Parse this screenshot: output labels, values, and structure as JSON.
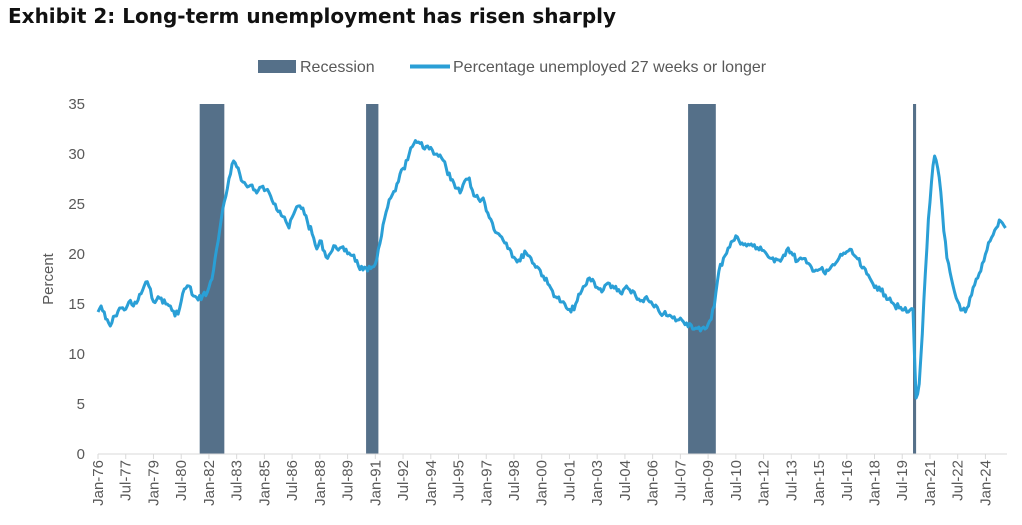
{
  "title": "Exhibit 2: Long-term unemployment has risen sharply",
  "chart_data": {
    "type": "line",
    "ylabel": "Percent",
    "xlabel": "",
    "ylim": [
      0,
      35
    ],
    "y_ticks": [
      0,
      5,
      10,
      15,
      20,
      25,
      30,
      35
    ],
    "grid": false,
    "legend_position": "top-center",
    "colors": {
      "line": "#2a9fd6",
      "recession": "#557089",
      "axis": "#d9d9d9",
      "text": "#595959"
    },
    "x_tick_labels": [
      "Jan-76",
      "Jul-77",
      "Jan-79",
      "Jul-80",
      "Jan-82",
      "Jul-83",
      "Jan-85",
      "Jul-86",
      "Jan-88",
      "Jul-89",
      "Jan-91",
      "Jul-92",
      "Jan-94",
      "Jul-95",
      "Jan-97",
      "Jul-98",
      "Jan-00",
      "Jul-01",
      "Jan-03",
      "Jul-04",
      "Jan-06",
      "Jul-07",
      "Jan-09",
      "Jul-10",
      "Jan-12",
      "Jul-13",
      "Jan-15",
      "Jul-16",
      "Jan-18",
      "Jul-19",
      "Jan-21",
      "Jul-22",
      "Jan-24"
    ],
    "x_range": [
      "1976-01",
      "2025-03"
    ],
    "series": [
      {
        "name": "Percentage unemployed 27 weeks or longer",
        "kind": "line",
        "points": [
          [
            "1976-01",
            14.2
          ],
          [
            "1976-03",
            14.8
          ],
          [
            "1976-06",
            13.5
          ],
          [
            "1976-09",
            12.8
          ],
          [
            "1976-12",
            13.8
          ],
          [
            "1977-03",
            14.6
          ],
          [
            "1977-06",
            14.4
          ],
          [
            "1977-09",
            15.2
          ],
          [
            "1977-12",
            14.8
          ],
          [
            "1978-03",
            15.4
          ],
          [
            "1978-06",
            16.4
          ],
          [
            "1978-08",
            17.2
          ],
          [
            "1978-10",
            16.8
          ],
          [
            "1978-12",
            15.6
          ],
          [
            "1979-03",
            15.4
          ],
          [
            "1979-06",
            15.6
          ],
          [
            "1979-09",
            15.0
          ],
          [
            "1979-12",
            14.8
          ],
          [
            "1980-03",
            13.8
          ],
          [
            "1980-06",
            14.6
          ],
          [
            "1980-09",
            16.5
          ],
          [
            "1980-12",
            16.8
          ],
          [
            "1981-03",
            15.8
          ],
          [
            "1981-06",
            15.4
          ],
          [
            "1981-09",
            15.9
          ],
          [
            "1981-12",
            16.2
          ],
          [
            "1982-03",
            17.5
          ],
          [
            "1982-06",
            20.5
          ],
          [
            "1982-09",
            23.5
          ],
          [
            "1982-12",
            25.8
          ],
          [
            "1983-03",
            28.0
          ],
          [
            "1983-05",
            29.3
          ],
          [
            "1983-08",
            28.6
          ],
          [
            "1983-11",
            27.2
          ],
          [
            "1984-02",
            26.7
          ],
          [
            "1984-05",
            26.9
          ],
          [
            "1984-08",
            26.1
          ],
          [
            "1984-11",
            26.7
          ],
          [
            "1985-02",
            26.4
          ],
          [
            "1985-05",
            25.8
          ],
          [
            "1985-08",
            25.0
          ],
          [
            "1985-11",
            24.3
          ],
          [
            "1986-02",
            23.7
          ],
          [
            "1986-05",
            22.6
          ],
          [
            "1986-08",
            24.0
          ],
          [
            "1986-11",
            24.8
          ],
          [
            "1987-02",
            24.6
          ],
          [
            "1987-05",
            23.2
          ],
          [
            "1987-08",
            22.0
          ],
          [
            "1987-11",
            20.5
          ],
          [
            "1988-02",
            21.3
          ],
          [
            "1988-05",
            19.7
          ],
          [
            "1988-08",
            20.1
          ],
          [
            "1988-11",
            20.8
          ],
          [
            "1989-02",
            20.6
          ],
          [
            "1989-05",
            20.3
          ],
          [
            "1989-08",
            20.1
          ],
          [
            "1989-11",
            19.9
          ],
          [
            "1990-02",
            18.8
          ],
          [
            "1990-05",
            18.4
          ],
          [
            "1990-08",
            18.3
          ],
          [
            "1990-11",
            18.7
          ],
          [
            "1991-02",
            19.5
          ],
          [
            "1991-05",
            21.8
          ],
          [
            "1991-08",
            24.2
          ],
          [
            "1991-11",
            25.6
          ],
          [
            "1992-02",
            26.3
          ],
          [
            "1992-05",
            28.0
          ],
          [
            "1992-08",
            28.5
          ],
          [
            "1992-11",
            30.0
          ],
          [
            "1993-02",
            31.0
          ],
          [
            "1993-05",
            31.2
          ],
          [
            "1993-08",
            30.6
          ],
          [
            "1993-11",
            30.8
          ],
          [
            "1994-02",
            30.4
          ],
          [
            "1994-05",
            30.0
          ],
          [
            "1994-08",
            29.6
          ],
          [
            "1994-11",
            28.6
          ],
          [
            "1995-02",
            27.4
          ],
          [
            "1995-05",
            26.6
          ],
          [
            "1995-08",
            26.1
          ],
          [
            "1995-11",
            27.3
          ],
          [
            "1996-02",
            27.6
          ],
          [
            "1996-05",
            25.8
          ],
          [
            "1996-08",
            25.5
          ],
          [
            "1996-11",
            25.6
          ],
          [
            "1997-02",
            24.1
          ],
          [
            "1997-05",
            23.1
          ],
          [
            "1997-08",
            22.1
          ],
          [
            "1997-11",
            21.7
          ],
          [
            "1998-02",
            21.1
          ],
          [
            "1998-05",
            20.3
          ],
          [
            "1998-08",
            19.5
          ],
          [
            "1998-11",
            19.3
          ],
          [
            "1999-02",
            20.3
          ],
          [
            "1999-05",
            19.8
          ],
          [
            "1999-08",
            19.0
          ],
          [
            "1999-11",
            18.6
          ],
          [
            "2000-02",
            17.8
          ],
          [
            "2000-05",
            17.0
          ],
          [
            "2000-08",
            16.3
          ],
          [
            "2000-11",
            15.6
          ],
          [
            "2001-02",
            15.2
          ],
          [
            "2001-05",
            14.6
          ],
          [
            "2001-08",
            14.2
          ],
          [
            "2001-11",
            15.0
          ],
          [
            "2002-02",
            16.0
          ],
          [
            "2002-05",
            16.8
          ],
          [
            "2002-08",
            17.6
          ],
          [
            "2002-11",
            17.2
          ],
          [
            "2003-02",
            16.5
          ],
          [
            "2003-05",
            16.4
          ],
          [
            "2003-08",
            17.1
          ],
          [
            "2003-11",
            16.8
          ],
          [
            "2004-02",
            16.3
          ],
          [
            "2004-05",
            16.0
          ],
          [
            "2004-08",
            16.8
          ],
          [
            "2004-11",
            16.1
          ],
          [
            "2005-02",
            15.8
          ],
          [
            "2005-05",
            15.3
          ],
          [
            "2005-08",
            15.6
          ],
          [
            "2005-11",
            15.2
          ],
          [
            "2006-02",
            14.7
          ],
          [
            "2006-05",
            14.3
          ],
          [
            "2006-08",
            14.0
          ],
          [
            "2006-11",
            13.8
          ],
          [
            "2007-02",
            13.6
          ],
          [
            "2007-05",
            13.4
          ],
          [
            "2007-08",
            13.4
          ],
          [
            "2007-11",
            13.1
          ],
          [
            "2008-02",
            12.9
          ],
          [
            "2008-05",
            12.6
          ],
          [
            "2008-08",
            12.3
          ],
          [
            "2008-11",
            12.5
          ],
          [
            "2009-02",
            13.3
          ],
          [
            "2009-05",
            14.8
          ],
          [
            "2009-08",
            18.3
          ],
          [
            "2009-11",
            19.6
          ],
          [
            "2010-02",
            20.6
          ],
          [
            "2010-05",
            21.3
          ],
          [
            "2010-08",
            21.7
          ],
          [
            "2010-11",
            21.1
          ],
          [
            "2011-02",
            20.8
          ],
          [
            "2011-05",
            21.0
          ],
          [
            "2011-08",
            20.5
          ],
          [
            "2011-11",
            20.7
          ],
          [
            "2012-02",
            20.2
          ],
          [
            "2012-05",
            19.6
          ],
          [
            "2012-08",
            19.2
          ],
          [
            "2012-11",
            19.4
          ],
          [
            "2013-02",
            19.9
          ],
          [
            "2013-05",
            20.6
          ],
          [
            "2013-08",
            19.9
          ],
          [
            "2013-11",
            19.3
          ],
          [
            "2014-02",
            19.5
          ],
          [
            "2014-05",
            19.1
          ],
          [
            "2014-08",
            18.7
          ],
          [
            "2014-11",
            18.4
          ],
          [
            "2015-02",
            18.5
          ],
          [
            "2015-05",
            18.0
          ],
          [
            "2015-08",
            18.5
          ],
          [
            "2015-11",
            18.9
          ],
          [
            "2016-02",
            19.6
          ],
          [
            "2016-05",
            20.1
          ],
          [
            "2016-08",
            20.3
          ],
          [
            "2016-11",
            20.0
          ],
          [
            "2017-02",
            19.5
          ],
          [
            "2017-05",
            18.6
          ],
          [
            "2017-08",
            18.0
          ],
          [
            "2017-11",
            17.3
          ],
          [
            "2018-02",
            16.8
          ],
          [
            "2018-05",
            16.3
          ],
          [
            "2018-08",
            15.9
          ],
          [
            "2018-11",
            15.6
          ],
          [
            "2019-02",
            14.9
          ],
          [
            "2019-05",
            14.6
          ],
          [
            "2019-08",
            14.4
          ],
          [
            "2019-11",
            14.2
          ],
          [
            "2020-02",
            14.5
          ],
          [
            "2020-03",
            9.5
          ],
          [
            "2020-04",
            5.6
          ],
          [
            "2020-06",
            7.0
          ],
          [
            "2020-08",
            12.0
          ],
          [
            "2020-10",
            18.0
          ],
          [
            "2020-12",
            23.5
          ],
          [
            "2021-02",
            27.2
          ],
          [
            "2021-04",
            29.8
          ],
          [
            "2021-06",
            28.6
          ],
          [
            "2021-08",
            26.2
          ],
          [
            "2021-10",
            22.3
          ],
          [
            "2021-12",
            19.6
          ],
          [
            "2022-02",
            18.2
          ],
          [
            "2022-04",
            16.8
          ],
          [
            "2022-06",
            15.6
          ],
          [
            "2022-08",
            15.0
          ],
          [
            "2022-10",
            14.4
          ],
          [
            "2022-12",
            14.2
          ],
          [
            "2023-02",
            14.8
          ],
          [
            "2023-04",
            15.9
          ],
          [
            "2023-06",
            16.9
          ],
          [
            "2023-08",
            17.6
          ],
          [
            "2023-10",
            18.3
          ],
          [
            "2023-12",
            19.3
          ],
          [
            "2024-02",
            20.4
          ],
          [
            "2024-04",
            21.3
          ],
          [
            "2024-06",
            21.9
          ],
          [
            "2024-08",
            22.6
          ],
          [
            "2024-10",
            23.4
          ],
          [
            "2024-12",
            23.1
          ],
          [
            "2025-02",
            22.6
          ]
        ]
      }
    ],
    "recessions": {
      "name": "Recession",
      "kind": "bar",
      "periods": [
        [
          "1981-07",
          "1982-11"
        ],
        [
          "1990-07",
          "1991-03"
        ],
        [
          "2007-12",
          "2009-06"
        ],
        [
          "2020-02",
          "2020-04"
        ]
      ]
    }
  }
}
